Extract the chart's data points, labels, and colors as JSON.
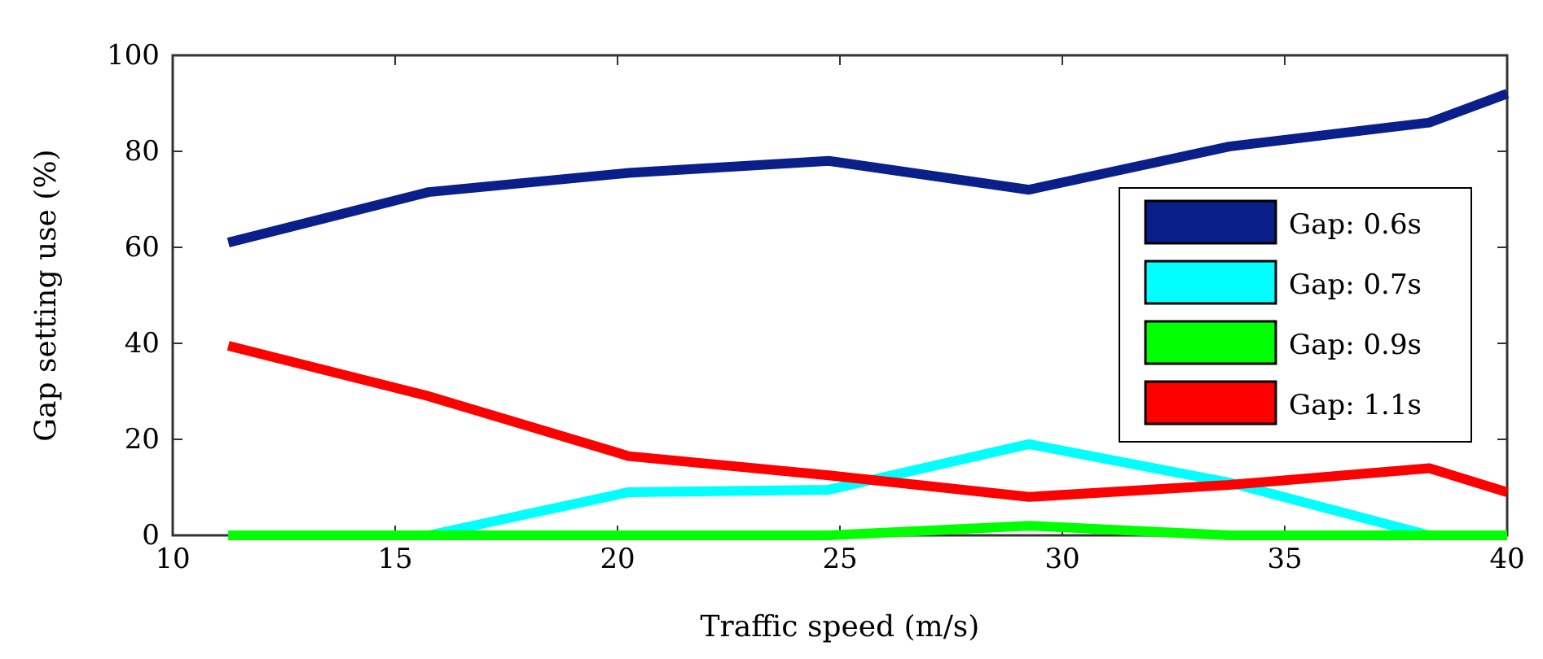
{
  "chart_data": {
    "type": "line",
    "xlabel": "Traffic speed (m/s)",
    "ylabel": "Gap setting use (%)",
    "x": [
      11.25,
      15.75,
      20.25,
      24.75,
      29.25,
      33.75,
      38.25,
      40
    ],
    "series": [
      {
        "name": "Gap: 0.6s",
        "color": "#0b1f8a",
        "values": [
          61,
          71.5,
          75.5,
          78,
          72,
          81,
          86,
          92
        ]
      },
      {
        "name": "Gap: 0.7s",
        "color": "#00ffff",
        "values": [
          0,
          0,
          9,
          9.5,
          19,
          11,
          0,
          0
        ]
      },
      {
        "name": "Gap: 0.9s",
        "color": "#00ff00",
        "values": [
          0,
          0,
          0,
          0,
          2,
          0,
          0,
          0
        ]
      },
      {
        "name": "Gap: 1.1s",
        "color": "#ff0000",
        "values": [
          39.5,
          29,
          16.5,
          12.5,
          8,
          10.5,
          14,
          9
        ]
      }
    ],
    "xlim": [
      10,
      40
    ],
    "xticks": [
      10,
      15,
      20,
      25,
      30,
      35,
      40
    ],
    "ylim": [
      0,
      100
    ],
    "yticks": [
      0,
      20,
      40,
      60,
      80,
      100
    ],
    "grid": false,
    "legend": "right",
    "marker": "none",
    "line_style": "solid"
  }
}
